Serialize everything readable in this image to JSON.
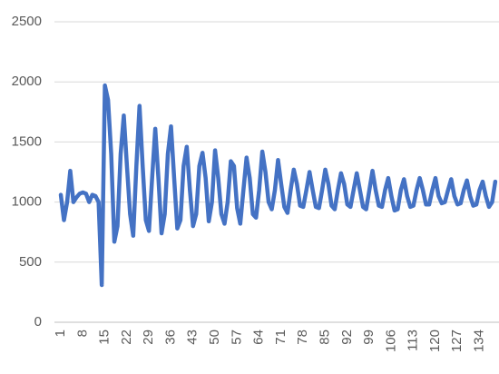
{
  "chart_data": {
    "type": "line",
    "categories": [
      1,
      null,
      null,
      null,
      null,
      null,
      null,
      8,
      null,
      null,
      null,
      null,
      null,
      null,
      15,
      null,
      null,
      null,
      null,
      null,
      null,
      22,
      null,
      null,
      null,
      null,
      null,
      null,
      29,
      null,
      null,
      null,
      null,
      null,
      null,
      36,
      null,
      null,
      null,
      null,
      null,
      null,
      43,
      null,
      null,
      null,
      null,
      null,
      null,
      50,
      null,
      null,
      null,
      null,
      null,
      null,
      57,
      null,
      null,
      null,
      null,
      null,
      null,
      64,
      null,
      null,
      null,
      null,
      null,
      null,
      71,
      null,
      null,
      null,
      null,
      null,
      null,
      78,
      null,
      null,
      null,
      null,
      null,
      null,
      85,
      null,
      null,
      null,
      null,
      null,
      null,
      92,
      null,
      null,
      null,
      null,
      null,
      null,
      99,
      null,
      null,
      null,
      null,
      null,
      null,
      106,
      null,
      null,
      null,
      null,
      null,
      null,
      113,
      null,
      null,
      null,
      null,
      null,
      null,
      120,
      null,
      null,
      null,
      null,
      null,
      null,
      127,
      null,
      null,
      null,
      null,
      null,
      null,
      134,
      null,
      null,
      null,
      null,
      null
    ],
    "values": [
      1060,
      850,
      1000,
      1260,
      1000,
      1040,
      1070,
      1080,
      1070,
      1000,
      1060,
      1050,
      1000,
      310,
      1970,
      1850,
      1400,
      670,
      800,
      1400,
      1720,
      1300,
      900,
      720,
      1300,
      1800,
      1300,
      850,
      760,
      1200,
      1610,
      1200,
      740,
      900,
      1400,
      1630,
      1200,
      780,
      850,
      1300,
      1460,
      1100,
      800,
      900,
      1300,
      1410,
      1200,
      840,
      1000,
      1430,
      1200,
      900,
      820,
      1000,
      1340,
      1300,
      950,
      820,
      1100,
      1370,
      1200,
      900,
      870,
      1100,
      1420,
      1250,
      1000,
      940,
      1100,
      1350,
      1150,
      960,
      910,
      1100,
      1270,
      1150,
      970,
      960,
      1100,
      1250,
      1100,
      960,
      950,
      1100,
      1270,
      1150,
      970,
      940,
      1100,
      1240,
      1150,
      980,
      960,
      1100,
      1240,
      1100,
      960,
      940,
      1100,
      1260,
      1100,
      970,
      960,
      1100,
      1200,
      1050,
      930,
      940,
      1100,
      1190,
      1050,
      960,
      970,
      1100,
      1200,
      1100,
      980,
      980,
      1100,
      1200,
      1050,
      990,
      1000,
      1100,
      1190,
      1050,
      980,
      990,
      1100,
      1180,
      1050,
      970,
      980,
      1100,
      1170,
      1050,
      960,
      1000,
      1170
    ],
    "color": "#4472c4",
    "ylim": [
      0,
      2500
    ],
    "yticks": [
      0,
      500,
      1000,
      1500,
      2000,
      2500
    ],
    "grid": true
  }
}
